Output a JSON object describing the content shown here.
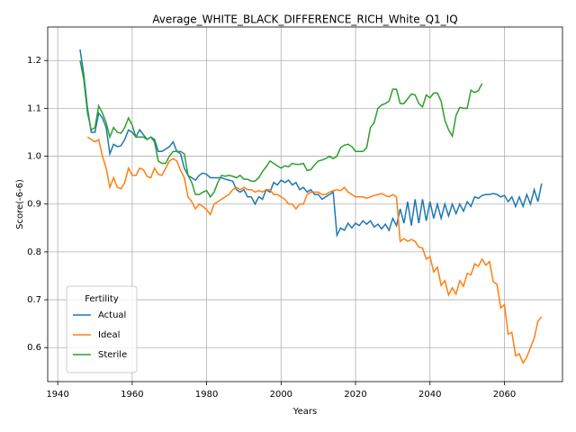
{
  "chart_data": {
    "type": "line",
    "title": "Average_WHITE_BLACK_DIFFERENCE_RICH_White_Q1_IQ",
    "x_label": "Years",
    "y_label": "Score(-6-6)",
    "legend_title": "Fertility",
    "legend_position": "lower left",
    "grid": true,
    "xlim": [
      1937.3,
      2075.6
    ],
    "ylim": [
      0.529,
      1.27
    ],
    "xticks": [
      1940,
      1960,
      1980,
      2000,
      2020,
      2040,
      2060
    ],
    "yticks": [
      0.6,
      0.7,
      0.8,
      0.9,
      {
        "value": 1,
        "label": "1.0"
      },
      1.1,
      1.2
    ],
    "x": [
      1946,
      1947,
      1948,
      1949,
      1950,
      1951,
      1952,
      1953,
      1954,
      1955,
      1956,
      1957,
      1958,
      1959,
      1960,
      1961,
      1962,
      1963,
      1964,
      1965,
      1966,
      1967,
      1968,
      1969,
      1970,
      1971,
      1972,
      1973,
      1974,
      1975,
      1976,
      1977,
      1978,
      1979,
      1980,
      1981,
      1982,
      1983,
      1984,
      1985,
      1986,
      1987,
      1988,
      1989,
      1990,
      1991,
      1992,
      1993,
      1994,
      1995,
      1996,
      1997,
      1998,
      1999,
      2000,
      2001,
      2002,
      2003,
      2004,
      2005,
      2006,
      2007,
      2008,
      2009,
      2010,
      2011,
      2012,
      2013,
      2014,
      2015,
      2016,
      2017,
      2018,
      2019,
      2020,
      2021,
      2022,
      2023,
      2024,
      2025,
      2026,
      2027,
      2028,
      2029,
      2030,
      2031,
      2032,
      2033,
      2034,
      2035,
      2036,
      2037,
      2038,
      2039,
      2040,
      2041,
      2042,
      2043,
      2044,
      2045,
      2046,
      2047,
      2048,
      2049,
      2050,
      2051,
      2052,
      2053,
      2054,
      2055,
      2056,
      2057,
      2058,
      2059,
      2060,
      2061,
      2062,
      2063,
      2064,
      2065,
      2066,
      2067,
      2068,
      2069,
      2070
    ],
    "series": [
      {
        "name": "Actual",
        "color": "#1f77b4",
        "values": [
          1.223,
          1.17,
          1.1,
          1.05,
          1.05,
          1.09,
          1.08,
          1.06,
          1.005,
          1.025,
          1.02,
          1.022,
          1.035,
          1.055,
          1.05,
          1.04,
          1.055,
          1.045,
          1.035,
          1.04,
          1.035,
          1.01,
          1.01,
          1.015,
          1.02,
          1.03,
          1.01,
          1.005,
          0.975,
          0.96,
          0.955,
          0.95,
          0.96,
          0.965,
          0.962,
          0.955,
          0.955,
          0.955,
          0.955,
          0.952,
          0.95,
          0.948,
          0.93,
          0.925,
          0.93,
          0.915,
          0.915,
          0.9,
          0.915,
          0.91,
          0.93,
          0.925,
          0.945,
          0.94,
          0.95,
          0.945,
          0.95,
          0.94,
          0.945,
          0.93,
          0.935,
          0.925,
          0.93,
          0.92,
          0.92,
          0.91,
          0.915,
          0.92,
          0.925,
          0.835,
          0.85,
          0.845,
          0.86,
          0.85,
          0.86,
          0.855,
          0.865,
          0.858,
          0.865,
          0.852,
          0.858,
          0.848,
          0.858,
          0.845,
          0.87,
          0.855,
          0.89,
          0.86,
          0.905,
          0.855,
          0.91,
          0.86,
          0.91,
          0.865,
          0.905,
          0.87,
          0.9,
          0.87,
          0.9,
          0.875,
          0.9,
          0.88,
          0.9,
          0.885,
          0.905,
          0.895,
          0.915,
          0.912,
          0.918,
          0.92,
          0.92,
          0.922,
          0.92,
          0.915,
          0.918,
          0.905,
          0.915,
          0.895,
          0.915,
          0.895,
          0.92,
          0.9,
          0.93,
          0.905,
          0.943
        ]
      },
      {
        "name": "Ideal",
        "color": "#ff7f0e",
        "values": [
          null,
          null,
          1.04,
          1.035,
          1.03,
          1.035,
          1.0,
          0.975,
          0.935,
          0.955,
          0.935,
          0.932,
          0.945,
          0.975,
          0.96,
          0.96,
          0.975,
          0.972,
          0.958,
          0.955,
          0.975,
          0.962,
          0.96,
          0.975,
          0.99,
          0.995,
          0.99,
          0.97,
          0.955,
          0.915,
          0.905,
          0.89,
          0.9,
          0.895,
          0.888,
          0.878,
          0.9,
          0.905,
          0.91,
          0.915,
          0.92,
          0.93,
          0.935,
          0.93,
          0.935,
          0.93,
          0.93,
          0.925,
          0.928,
          0.925,
          0.93,
          0.93,
          0.92,
          0.92,
          0.915,
          0.91,
          0.9,
          0.9,
          0.89,
          0.9,
          0.9,
          0.92,
          0.925,
          0.925,
          0.925,
          0.92,
          0.92,
          0.925,
          0.928,
          0.93,
          0.928,
          0.935,
          0.925,
          0.92,
          0.915,
          0.915,
          0.915,
          0.912,
          0.915,
          0.918,
          0.92,
          0.922,
          0.918,
          0.915,
          0.92,
          0.915,
          0.822,
          0.828,
          0.822,
          0.826,
          0.822,
          0.81,
          0.808,
          0.785,
          0.79,
          0.758,
          0.768,
          0.73,
          0.74,
          0.71,
          0.725,
          0.712,
          0.74,
          0.728,
          0.755,
          0.752,
          0.775,
          0.77,
          0.785,
          0.772,
          0.78,
          0.738,
          0.732,
          0.683,
          0.69,
          0.628,
          0.632,
          0.583,
          0.587,
          0.568,
          0.58,
          0.6,
          0.62,
          0.655,
          0.665
        ]
      },
      {
        "name": "Sterile",
        "color": "#2ca02c",
        "values": [
          1.2,
          1.16,
          1.09,
          1.055,
          1.06,
          1.105,
          1.09,
          1.07,
          1.04,
          1.06,
          1.05,
          1.048,
          1.06,
          1.08,
          1.065,
          1.04,
          1.04,
          1.04,
          1.035,
          1.04,
          1.03,
          0.99,
          0.985,
          0.985,
          1.0,
          1.01,
          1.01,
          1.01,
          1.005,
          0.96,
          0.945,
          0.92,
          0.92,
          0.925,
          0.928,
          0.915,
          0.925,
          0.945,
          0.96,
          0.958,
          0.96,
          0.958,
          0.955,
          0.96,
          0.952,
          0.952,
          0.948,
          0.948,
          0.955,
          0.968,
          0.978,
          0.99,
          0.985,
          0.98,
          0.975,
          0.98,
          0.978,
          0.985,
          0.983,
          0.983,
          0.985,
          0.97,
          0.972,
          0.982,
          0.99,
          0.992,
          0.995,
          1.0,
          0.995,
          1.0,
          1.018,
          1.023,
          1.025,
          1.02,
          1.01,
          1.01,
          1.01,
          1.018,
          1.06,
          1.07,
          1.1,
          1.107,
          1.11,
          1.115,
          1.14,
          1.14,
          1.11,
          1.11,
          1.12,
          1.13,
          1.128,
          1.11,
          1.103,
          1.128,
          1.122,
          1.132,
          1.132,
          1.115,
          1.075,
          1.055,
          1.042,
          1.085,
          1.102,
          1.1,
          1.1,
          1.138,
          1.133,
          1.137,
          1.152,
          null,
          null,
          null,
          null,
          null,
          null,
          null,
          null,
          null,
          null,
          null,
          null,
          null,
          null,
          null,
          null
        ]
      }
    ]
  }
}
